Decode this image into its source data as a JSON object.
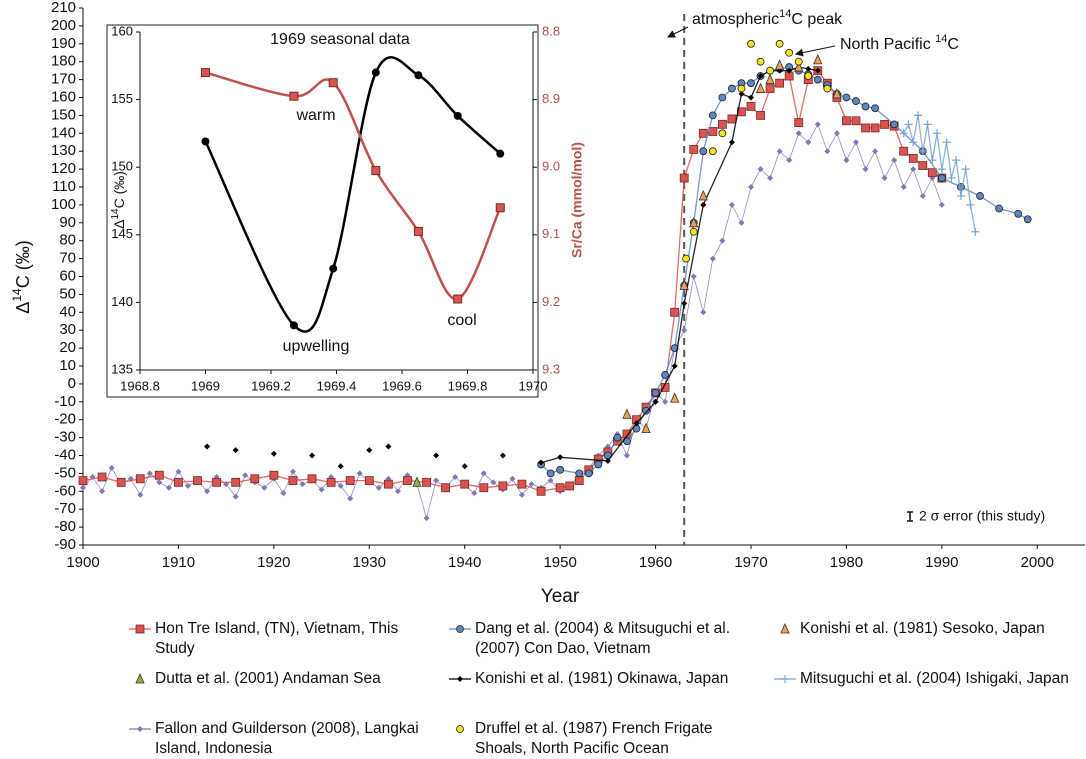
{
  "chart_data": [
    {
      "type": "scatter-line",
      "x_label": "Year",
      "y_label": [
        "Δ",
        "14",
        "C (‰)"
      ],
      "xlim": [
        1900,
        2005
      ],
      "xticks": [
        1900,
        1910,
        1920,
        1930,
        1940,
        1950,
        1960,
        1970,
        1980,
        1990,
        2000
      ],
      "ylim": [
        -90,
        210
      ],
      "yticks": [
        -90,
        -80,
        -70,
        -60,
        -50,
        -40,
        -30,
        -20,
        -10,
        0,
        10,
        20,
        30,
        40,
        50,
        60,
        70,
        80,
        90,
        100,
        110,
        120,
        130,
        140,
        150,
        160,
        170,
        180,
        190,
        200,
        210
      ],
      "peak_year": 1963,
      "peak_label": [
        "atmospheric",
        "14",
        "C peak"
      ],
      "pacific_label": [
        "North Pacific ",
        "14",
        "C"
      ],
      "error_label": "2 σ error (this study)",
      "series": [
        {
          "name": "Hon Tre Island, (TN), Vietnam, This Study",
          "color": "#d9534f",
          "marker": "square",
          "connected": true,
          "x": [
            1900,
            1902,
            1904,
            1906,
            1908,
            1910,
            1912,
            1914,
            1916,
            1918,
            1920,
            1922,
            1924,
            1926,
            1928,
            1930,
            1932,
            1934,
            1936,
            1938,
            1940,
            1942,
            1944,
            1946,
            1948,
            1950,
            1951,
            1952,
            1953,
            1954,
            1955,
            1956,
            1957,
            1958,
            1959,
            1960,
            1961,
            1962,
            1963,
            1964,
            1965,
            1966,
            1967,
            1968,
            1969,
            1970,
            1971,
            1972,
            1973,
            1974,
            1975,
            1976,
            1977,
            1978,
            1979,
            1980,
            1981,
            1982,
            1983,
            1984,
            1985,
            1986,
            1987,
            1988,
            1989,
            1990
          ],
          "values": [
            -54,
            -52,
            -55,
            -53,
            -51,
            -55,
            -54,
            -55,
            -55,
            -53,
            -51,
            -54,
            -53,
            -55,
            -54,
            -54,
            -56,
            -54,
            -55,
            -58,
            -56,
            -58,
            -57,
            -56,
            -60,
            -58,
            -57,
            -54,
            -48,
            -42,
            -38,
            -32,
            -28,
            -20,
            -13,
            -5,
            -2,
            40,
            115,
            131,
            140,
            141,
            145,
            148,
            152,
            155,
            150,
            165,
            168,
            172,
            146,
            170,
            175,
            168,
            160,
            147,
            147,
            143,
            143,
            145,
            144,
            130,
            126,
            122,
            118,
            115
          ]
        },
        {
          "name": "Dutta et al. (2001) Andaman Sea",
          "color": "#8db33f",
          "marker": "triangle",
          "connected": false,
          "x": [
            1935
          ],
          "values": [
            -55
          ]
        },
        {
          "name": "Fallon and Guilderson (2008), Langkai Island, Indonesia",
          "color": "#8477b5",
          "marker": "diamond",
          "connected": true,
          "x": [
            1900,
            1901,
            1902,
            1903,
            1904,
            1905,
            1906,
            1907,
            1908,
            1909,
            1910,
            1911,
            1912,
            1913,
            1914,
            1915,
            1916,
            1917,
            1918,
            1919,
            1920,
            1921,
            1922,
            1923,
            1924,
            1925,
            1926,
            1927,
            1928,
            1929,
            1930,
            1931,
            1932,
            1933,
            1934,
            1935,
            1936,
            1937,
            1938,
            1939,
            1940,
            1941,
            1942,
            1943,
            1944,
            1945,
            1946,
            1947,
            1948,
            1949,
            1950,
            1951,
            1952,
            1953,
            1954,
            1955,
            1956,
            1957,
            1958,
            1959,
            1960,
            1961,
            1962,
            1963,
            1964,
            1965,
            1966,
            1967,
            1968,
            1969,
            1970,
            1971,
            1972,
            1973,
            1974,
            1975,
            1976,
            1977,
            1978,
            1979,
            1980,
            1981,
            1982,
            1983,
            1984,
            1985,
            1986,
            1987,
            1988,
            1989,
            1990
          ],
          "values": [
            -58,
            -52,
            -60,
            -47,
            -56,
            -53,
            -62,
            -50,
            -55,
            -58,
            -49,
            -57,
            -54,
            -60,
            -52,
            -56,
            -63,
            -51,
            -55,
            -58,
            -53,
            -61,
            -49,
            -56,
            -54,
            -59,
            -52,
            -57,
            -64,
            -50,
            -55,
            -58,
            -53,
            -60,
            -51,
            -56,
            -75,
            -54,
            -58,
            -52,
            -57,
            -61,
            -50,
            -55,
            -59,
            -53,
            -62,
            -56,
            -58,
            -54,
            -60,
            -58,
            -50,
            -47,
            -40,
            -35,
            -28,
            -40,
            -20,
            -25,
            -5,
            -10,
            20,
            30,
            60,
            40,
            70,
            80,
            100,
            90,
            110,
            120,
            115,
            130,
            125,
            140,
            135,
            145,
            130,
            140,
            125,
            135,
            120,
            130,
            115,
            125,
            110,
            120,
            105,
            115,
            100
          ]
        },
        {
          "name": "Dang et al. (2004) & Mitsuguchi et al. (2007) Con Dao, Vietnam",
          "color": "#5b87c5",
          "marker": "circle",
          "connected": true,
          "x": [
            1948,
            1949,
            1950,
            1952,
            1953,
            1954,
            1955,
            1956,
            1957,
            1958,
            1959,
            1960,
            1961,
            1962,
            1963,
            1964,
            1965,
            1966,
            1967,
            1968,
            1969,
            1970,
            1971,
            1972,
            1973,
            1974,
            1975,
            1976,
            1977,
            1978,
            1979,
            1980,
            1981,
            1982,
            1983,
            1985,
            1988,
            1990,
            1992,
            1994,
            1996,
            1998,
            1999
          ],
          "values": [
            -45,
            -50,
            -48,
            -50,
            -50,
            -45,
            -40,
            -30,
            -32,
            -25,
            -15,
            -5,
            5,
            20,
            55,
            90,
            130,
            150,
            160,
            165,
            168,
            168,
            172,
            175,
            176,
            177,
            175,
            173,
            170,
            167,
            162,
            160,
            158,
            155,
            154,
            145,
            130,
            115,
            110,
            105,
            98,
            95,
            92
          ]
        },
        {
          "name": "Konishi et al. (1981) Okinawa, Japan",
          "color": "#000000",
          "marker": "diamond",
          "connected": true,
          "x": [
            1913,
            null,
            1916,
            null,
            1920,
            null,
            1924,
            null,
            1927,
            null,
            1930,
            null,
            1932,
            null,
            1937,
            null,
            1940,
            null,
            1944,
            null,
            1948,
            1950,
            1955,
            1958,
            1960,
            1962,
            1963,
            1965,
            1968,
            1969,
            1970,
            1971,
            1972,
            1973,
            1974,
            1975,
            1976,
            1977
          ],
          "values": [
            -35,
            null,
            -37,
            null,
            -39,
            null,
            -40,
            null,
            -46,
            null,
            -37,
            null,
            -35,
            null,
            -40,
            null,
            -46,
            null,
            -40,
            null,
            -44,
            -41,
            -43,
            -22,
            -10,
            10,
            45,
            100,
            135,
            162,
            160,
            172,
            175,
            175,
            175,
            177,
            176,
            175
          ]
        },
        {
          "name": "Druffel et al. (1987) French Frigate Shoals, North Pacific Ocean",
          "color": "#f4e320",
          "marker": "circle",
          "connected": false,
          "x": [
            1963.2,
            1964,
            1966,
            1967,
            1969,
            1970,
            1971,
            1972,
            1973,
            1974,
            1975,
            1976,
            1978
          ],
          "values": [
            70,
            85,
            130,
            140,
            165,
            190,
            180,
            175,
            190,
            185,
            180,
            172,
            165
          ]
        },
        {
          "name": "Konishi et al. (1981) Sesoko, Japan",
          "color": "#f0a050",
          "marker": "triangle",
          "connected": false,
          "x": [
            1957,
            1959,
            1962,
            1963,
            1964,
            1965,
            1971,
            1972,
            1973,
            1975,
            1977,
            1979
          ],
          "values": [
            -17,
            -25,
            -8,
            55,
            90,
            105,
            165,
            170,
            178,
            177,
            181,
            162
          ]
        },
        {
          "name": "Mitsuguchi et al. (2004) Ishigaki, Japan",
          "color": "#7ba3d6",
          "marker": "plus",
          "connected": true,
          "x": [
            1986,
            1986.5,
            1987,
            1987.5,
            1988,
            1988.5,
            1989,
            1989.5,
            1990,
            1990.5,
            1991,
            1991.5,
            1992,
            1992.5,
            1993,
            1993.5
          ],
          "values": [
            140,
            145,
            135,
            150,
            130,
            145,
            125,
            140,
            120,
            135,
            115,
            125,
            105,
            120,
            100,
            85
          ]
        }
      ]
    },
    {
      "type": "line",
      "title": "1969 seasonal data",
      "y_label": [
        "Δ",
        "14",
        "C (‰)"
      ],
      "y2_label": "Sr/Ca (mmol/mol)",
      "annotations": [
        "warm",
        "upwelling",
        "cool"
      ],
      "xlim": [
        1968.8,
        1970
      ],
      "xticks": [
        1968.8,
        1969,
        1969.2,
        1969.4,
        1969.6,
        1969.8,
        1970
      ],
      "ylim": [
        135,
        160
      ],
      "yticks": [
        135,
        140,
        145,
        150,
        155,
        160
      ],
      "y2lim": [
        8.8,
        9.3
      ],
      "y2_inverted": true,
      "y2ticks": [
        8.8,
        8.9,
        {
          "value": 9,
          "label": "9.0"
        },
        9.1,
        9.2,
        9.3
      ],
      "y2_color": "#b5524d",
      "x": [
        1969,
        1969.27,
        1969.39,
        1969.52,
        1969.65,
        1969.77,
        1969.9
      ],
      "series": [
        {
          "color": "#000000",
          "values": [
            151.9,
            138.3,
            142.5,
            157.0,
            156.8,
            153.8,
            151.0
          ]
        },
        {
          "color": "#c0504d",
          "axis": "y2",
          "values": [
            8.86,
            8.895,
            8.875,
            9.005,
            9.095,
            9.195,
            9.06
          ]
        }
      ]
    }
  ]
}
